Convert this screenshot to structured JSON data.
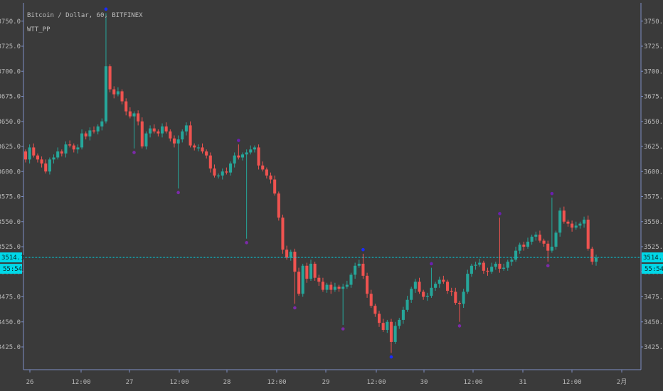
{
  "header": {
    "symbol_line": "Bitcoin / Dollar, 60, BITFINEX",
    "indicator": "WTT_PP"
  },
  "price_tag": {
    "price": "3514.3",
    "countdown": "55:54"
  },
  "colors": {
    "background": "#3a3a3a",
    "axis_line": "#7d8fc4",
    "up": "#26a69a",
    "down": "#ef5350",
    "price_line": "#00d8e8",
    "pivot_high": "#6a1fb0",
    "pivot_low": "#7b2aa8",
    "pivot_extreme": "#1a2bff"
  },
  "chart_data": {
    "type": "candlestick",
    "title": "Bitcoin / Dollar, 60, BITFINEX",
    "ylim": [
      3408,
      3765
    ],
    "y_ticks": [
      3425.0,
      3450.0,
      3475.0,
      3500.0,
      3525.0,
      3550.0,
      3575.0,
      3600.0,
      3625.0,
      3650.0,
      3675.0,
      3700.0,
      3725.0,
      3750.0
    ],
    "x_ticks": [
      "26",
      "12:00",
      "27",
      "12:00",
      "28",
      "12:00",
      "29",
      "12:00",
      "30",
      "12:00",
      "31",
      "12:00",
      "2月"
    ],
    "last_price": 3514.3,
    "closes": [
      3612,
      3624,
      3616,
      3612,
      3608,
      3600,
      3612,
      3614,
      3620,
      3618,
      3627,
      3626,
      3622,
      3624,
      3638,
      3635,
      3641,
      3640,
      3645,
      3650,
      3705,
      3682,
      3677,
      3680,
      3670,
      3660,
      3655,
      3658,
      3650,
      3625,
      3638,
      3643,
      3640,
      3638,
      3645,
      3640,
      3633,
      3628,
      3632,
      3640,
      3646,
      3626,
      3624,
      3624,
      3620,
      3616,
      3603,
      3596,
      3596,
      3600,
      3599,
      3608,
      3616,
      3614,
      3617,
      3619,
      3622,
      3624,
      3606,
      3602,
      3596,
      3592,
      3578,
      3554,
      3522,
      3514,
      3520,
      3500,
      3478,
      3506,
      3493,
      3508,
      3494,
      3490,
      3482,
      3487,
      3482,
      3485,
      3483,
      3485,
      3487,
      3497,
      3506,
      3508,
      3496,
      3478,
      3466,
      3458,
      3449,
      3442,
      3450,
      3430,
      3446,
      3452,
      3462,
      3472,
      3483,
      3490,
      3480,
      3475,
      3476,
      3484,
      3488,
      3492,
      3490,
      3481,
      3480,
      3469,
      3468,
      3480,
      3498,
      3506,
      3507,
      3509,
      3501,
      3500,
      3505,
      3508,
      3503,
      3504,
      3510,
      3512,
      3521,
      3527,
      3525,
      3530,
      3535,
      3537,
      3531,
      3528,
      3521,
      3525,
      3539,
      3561,
      3550,
      3548,
      3544,
      3546,
      3548,
      3552,
      3523,
      3510,
      3514
    ],
    "pivots": [
      {
        "i": 20,
        "price": 3762,
        "kind": "extreme_high"
      },
      {
        "i": 27,
        "price": 3619,
        "kind": "low"
      },
      {
        "i": 38,
        "price": 3579,
        "kind": "low"
      },
      {
        "i": 53,
        "price": 3631,
        "kind": "high"
      },
      {
        "i": 55,
        "price": 3529,
        "kind": "low"
      },
      {
        "i": 67,
        "price": 3464,
        "kind": "low"
      },
      {
        "i": 79,
        "price": 3443,
        "kind": "low"
      },
      {
        "i": 84,
        "price": 3522,
        "kind": "extreme_high"
      },
      {
        "i": 91,
        "price": 3415,
        "kind": "extreme_low"
      },
      {
        "i": 101,
        "price": 3508,
        "kind": "high"
      },
      {
        "i": 108,
        "price": 3446,
        "kind": "low"
      },
      {
        "i": 118,
        "price": 3558,
        "kind": "high"
      },
      {
        "i": 130,
        "price": 3506,
        "kind": "low"
      },
      {
        "i": 131,
        "price": 3578,
        "kind": "high"
      }
    ]
  }
}
